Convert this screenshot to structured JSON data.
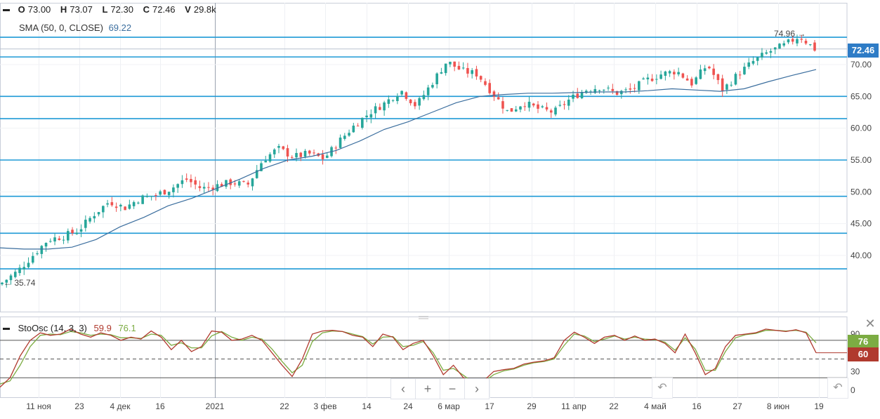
{
  "legend_main": {
    "o_label": "O",
    "o_value": "73.00",
    "h_label": "H",
    "h_value": "73.07",
    "l_label": "L",
    "l_value": "72.30",
    "c_label": "C",
    "c_value": "72.46",
    "v_label": "V",
    "v_value": "29.8k",
    "sma_label": "SMA (50, 0, CLOSE)",
    "sma_value": "69.22"
  },
  "legend_osc": {
    "label": "StoOsc (14, 3, 3)",
    "k_value": "59.9",
    "d_value": "76.1"
  },
  "price_badge": "72.46",
  "osc_badge_d": "76",
  "osc_badge_k": "60",
  "nav": {
    "prev": "‹",
    "zoom_in": "+",
    "zoom_out": "−",
    "next": "›",
    "reset": "↶"
  },
  "close_symbol": "✕",
  "colors": {
    "up": "#26a69a",
    "down": "#ef5350",
    "sma": "#3b6e9e",
    "levels": "#1e9ad6",
    "stoch_k": "#b03a2e",
    "stoch_d": "#7cac43",
    "badge_blue": "#2e7cc6",
    "badge_green": "#7cac43",
    "badge_red": "#b03a2e"
  },
  "chart_data": [
    {
      "type": "candlestick",
      "ylim": [
        33,
        75.5
      ],
      "y_ticks": [
        40,
        45,
        50,
        55,
        60,
        65,
        70
      ],
      "x_ticks": [
        "11 ноя",
        "23",
        "4 дек",
        "16",
        "2021",
        "22",
        "3 фев",
        "14",
        "24",
        "6 мар",
        "17",
        "29",
        "11 апр",
        "22",
        "4 май",
        "16",
        "27",
        "8 июн",
        "19"
      ],
      "horizontal_levels": [
        74.3,
        71.2,
        65.0,
        61.5,
        55.0,
        49.3,
        43.5,
        37.9
      ],
      "annotations": {
        "high": "74.96",
        "low": "35.74"
      },
      "last_close": 72.46,
      "close_anchors": [
        35.74,
        37.5,
        40.0,
        42.5,
        43.0,
        44.0,
        46.5,
        48.5,
        47.5,
        49.0,
        49.5,
        50.5,
        52.0,
        50.5,
        51.0,
        51.5,
        51.0,
        55.0,
        56.8,
        55.5,
        56.0,
        55.2,
        58.0,
        60.5,
        62.5,
        64.0,
        66.0,
        63.5,
        67.0,
        70.5,
        69.0,
        68.5,
        65.5,
        62.5,
        64.0,
        63.0,
        62.5,
        64.5,
        66.0,
        66.5,
        65.5,
        66.0,
        67.5,
        68.5,
        69.0,
        67.0,
        70.0,
        66.0,
        68.5,
        70.5,
        72.0,
        73.0,
        74.5,
        72.46
      ],
      "sma": [
        41.2,
        41.0,
        41.0,
        41.3,
        42.5,
        44.5,
        46.0,
        47.8,
        49.0,
        50.5,
        52.0,
        53.7,
        55.0,
        55.6,
        56.5,
        58.0,
        59.8,
        61.0,
        62.5,
        64.0,
        65.0,
        65.3,
        65.5,
        65.5,
        65.6,
        65.7,
        65.7,
        65.9,
        66.2,
        66.0,
        65.8,
        66.2,
        67.3,
        68.3,
        69.22
      ]
    },
    {
      "type": "line",
      "ylim": [
        0,
        100
      ],
      "y_ticks": [
        0,
        30,
        60,
        90
      ],
      "overbought": 80,
      "middle": 50,
      "oversold": 20,
      "stoch_k_anchors": [
        5,
        20,
        55,
        80,
        92,
        88,
        90,
        98,
        90,
        85,
        92,
        88,
        80,
        85,
        82,
        95,
        85,
        65,
        80,
        62,
        70,
        95,
        93,
        80,
        82,
        88,
        80,
        60,
        40,
        22,
        50,
        90,
        95,
        96,
        94,
        88,
        85,
        70,
        90,
        85,
        65,
        75,
        80,
        55,
        25,
        40,
        20,
        10,
        15,
        30,
        33,
        35,
        42,
        45,
        47,
        52,
        80,
        93,
        85,
        75,
        85,
        88,
        80,
        87,
        80,
        82,
        75,
        60,
        90,
        60,
        25,
        35,
        70,
        88,
        90,
        92,
        98,
        96,
        94,
        97,
        92,
        60
      ],
      "stoch_d_anchors": [
        10,
        15,
        40,
        70,
        88,
        90,
        89,
        94,
        92,
        88,
        90,
        89,
        84,
        84,
        83,
        90,
        88,
        72,
        76,
        68,
        68,
        87,
        94,
        85,
        80,
        85,
        82,
        66,
        46,
        28,
        40,
        78,
        92,
        95,
        94,
        90,
        86,
        74,
        85,
        86,
        70,
        72,
        78,
        60,
        32,
        35,
        24,
        12,
        13,
        25,
        31,
        34,
        40,
        44,
        46,
        50,
        72,
        90,
        87,
        78,
        82,
        87,
        82,
        85,
        82,
        81,
        77,
        64,
        84,
        66,
        32,
        32,
        62,
        84,
        89,
        91,
        96,
        96,
        95,
        96,
        93,
        76.1
      ]
    }
  ]
}
